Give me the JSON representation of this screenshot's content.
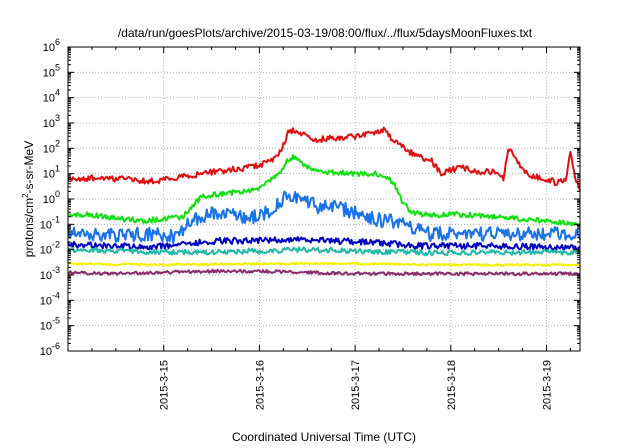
{
  "chart_data": {
    "type": "line",
    "title": "/data/run/goesPlots/archive/2015-03-19/08:00/flux/../flux/5daysMoonFluxes.txt",
    "xlabel": "Coordinated Universal Time (UTC)",
    "ylabel": {
      "base": "protons/cm",
      "sup": "2",
      "rest": "-s-sr-MeV"
    },
    "yscale": "log",
    "ylim_exp": [
      -6,
      6
    ],
    "ytick_base": "10",
    "ytick_exponents": [
      "-6",
      "-5",
      "-4",
      "-3",
      "-2",
      "-1",
      "0",
      "1",
      "2",
      "3",
      "4",
      "5",
      "6"
    ],
    "xlim_days": [
      14.0,
      19.35
    ],
    "xticks": [
      {
        "label": "2015-3-15",
        "day": 15
      },
      {
        "label": "2015-3-16",
        "day": 16
      },
      {
        "label": "2015-3-17",
        "day": 17
      },
      {
        "label": "2015-3-18",
        "day": 18
      },
      {
        "label": "2015-3-19",
        "day": 19
      }
    ],
    "grid": true,
    "series": [
      {
        "color": "#e01010",
        "noise": 0.12,
        "points": [
          [
            14.0,
            0.75
          ],
          [
            14.3,
            0.85
          ],
          [
            14.5,
            0.8
          ],
          [
            14.7,
            0.75
          ],
          [
            14.9,
            0.7
          ],
          [
            15.1,
            0.85
          ],
          [
            15.3,
            0.95
          ],
          [
            15.5,
            1.05
          ],
          [
            15.7,
            1.15
          ],
          [
            15.9,
            1.25
          ],
          [
            16.1,
            1.45
          ],
          [
            16.2,
            1.75
          ],
          [
            16.3,
            2.6
          ],
          [
            16.35,
            2.75
          ],
          [
            16.5,
            2.45
          ],
          [
            16.6,
            2.35
          ],
          [
            16.8,
            2.4
          ],
          [
            17.0,
            2.45
          ],
          [
            17.2,
            2.6
          ],
          [
            17.3,
            2.75
          ],
          [
            17.4,
            2.3
          ],
          [
            17.6,
            1.8
          ],
          [
            17.8,
            1.5
          ],
          [
            17.9,
            1.0
          ],
          [
            18.1,
            1.25
          ],
          [
            18.3,
            1.05
          ],
          [
            18.5,
            1.1
          ],
          [
            18.55,
            0.75
          ],
          [
            18.6,
            2.05
          ],
          [
            18.7,
            1.5
          ],
          [
            18.8,
            0.95
          ],
          [
            19.0,
            0.8
          ],
          [
            19.1,
            0.65
          ],
          [
            19.2,
            0.7
          ],
          [
            19.25,
            1.9
          ],
          [
            19.3,
            0.8
          ],
          [
            19.35,
            0.35
          ]
        ]
      },
      {
        "color": "#10e010",
        "noise": 0.1,
        "points": [
          [
            14.0,
            -0.7
          ],
          [
            14.2,
            -0.6
          ],
          [
            14.4,
            -0.7
          ],
          [
            14.6,
            -0.8
          ],
          [
            14.8,
            -0.85
          ],
          [
            15.0,
            -0.8
          ],
          [
            15.2,
            -0.7
          ],
          [
            15.4,
            0.1
          ],
          [
            15.6,
            0.2
          ],
          [
            15.8,
            0.3
          ],
          [
            16.0,
            0.4
          ],
          [
            16.2,
            0.95
          ],
          [
            16.3,
            1.55
          ],
          [
            16.35,
            1.65
          ],
          [
            16.5,
            1.25
          ],
          [
            16.7,
            1.05
          ],
          [
            17.0,
            1.0
          ],
          [
            17.2,
            1.0
          ],
          [
            17.3,
            0.95
          ],
          [
            17.4,
            0.65
          ],
          [
            17.5,
            -0.15
          ],
          [
            17.6,
            -0.55
          ],
          [
            17.8,
            -0.65
          ],
          [
            18.0,
            -0.6
          ],
          [
            18.3,
            -0.65
          ],
          [
            18.6,
            -0.75
          ],
          [
            18.9,
            -0.85
          ],
          [
            19.1,
            -0.9
          ],
          [
            19.35,
            -1.05
          ]
        ]
      },
      {
        "color": "#1a73e8",
        "noise": 0.28,
        "points": [
          [
            14.0,
            -1.3
          ],
          [
            14.3,
            -1.45
          ],
          [
            14.6,
            -1.4
          ],
          [
            14.9,
            -1.4
          ],
          [
            15.1,
            -1.5
          ],
          [
            15.3,
            -0.85
          ],
          [
            15.5,
            -0.5
          ],
          [
            15.7,
            -0.55
          ],
          [
            15.9,
            -0.75
          ],
          [
            16.0,
            -0.65
          ],
          [
            16.15,
            -0.35
          ],
          [
            16.3,
            0.15
          ],
          [
            16.45,
            0.0
          ],
          [
            16.6,
            -0.3
          ],
          [
            16.8,
            -0.3
          ],
          [
            17.0,
            -0.55
          ],
          [
            17.2,
            -0.8
          ],
          [
            17.4,
            -0.9
          ],
          [
            17.6,
            -1.1
          ],
          [
            17.8,
            -1.4
          ],
          [
            18.0,
            -1.35
          ],
          [
            18.3,
            -1.4
          ],
          [
            18.6,
            -1.35
          ],
          [
            18.9,
            -1.4
          ],
          [
            19.2,
            -1.35
          ],
          [
            19.35,
            -1.4
          ]
        ]
      },
      {
        "color": "#0000c0",
        "noise": 0.12,
        "points": [
          [
            14.0,
            -1.8
          ],
          [
            14.5,
            -1.85
          ],
          [
            14.8,
            -1.9
          ],
          [
            15.0,
            -1.85
          ],
          [
            15.3,
            -1.75
          ],
          [
            15.6,
            -1.65
          ],
          [
            16.0,
            -1.65
          ],
          [
            16.4,
            -1.6
          ],
          [
            16.8,
            -1.65
          ],
          [
            17.2,
            -1.7
          ],
          [
            17.6,
            -1.85
          ],
          [
            18.0,
            -1.85
          ],
          [
            18.5,
            -1.85
          ],
          [
            19.0,
            -1.9
          ],
          [
            19.35,
            -1.9
          ]
        ]
      },
      {
        "color": "#20b8a8",
        "noise": 0.1,
        "points": [
          [
            14.0,
            -2.0
          ],
          [
            14.5,
            -2.05
          ],
          [
            15.0,
            -2.1
          ],
          [
            15.5,
            -2.1
          ],
          [
            16.0,
            -2.05
          ],
          [
            16.5,
            -2.0
          ],
          [
            17.0,
            -2.05
          ],
          [
            17.5,
            -2.1
          ],
          [
            18.0,
            -2.15
          ],
          [
            18.5,
            -2.1
          ],
          [
            19.0,
            -2.1
          ],
          [
            19.35,
            -2.1
          ]
        ]
      },
      {
        "color": "#f5f000",
        "noise": 0.04,
        "points": [
          [
            14.0,
            -2.55
          ],
          [
            15.0,
            -2.6
          ],
          [
            16.0,
            -2.55
          ],
          [
            17.0,
            -2.55
          ],
          [
            18.0,
            -2.6
          ],
          [
            19.0,
            -2.6
          ],
          [
            19.35,
            -2.6
          ]
        ]
      },
      {
        "color": "#8a2c6e",
        "noise": 0.06,
        "points": [
          [
            14.0,
            -2.9
          ],
          [
            14.5,
            -2.95
          ],
          [
            15.0,
            -2.9
          ],
          [
            15.5,
            -2.85
          ],
          [
            16.0,
            -2.85
          ],
          [
            16.5,
            -2.9
          ],
          [
            17.0,
            -2.95
          ],
          [
            17.5,
            -2.95
          ],
          [
            18.0,
            -2.95
          ],
          [
            18.5,
            -2.95
          ],
          [
            19.0,
            -2.95
          ],
          [
            19.35,
            -2.95
          ]
        ]
      }
    ]
  }
}
